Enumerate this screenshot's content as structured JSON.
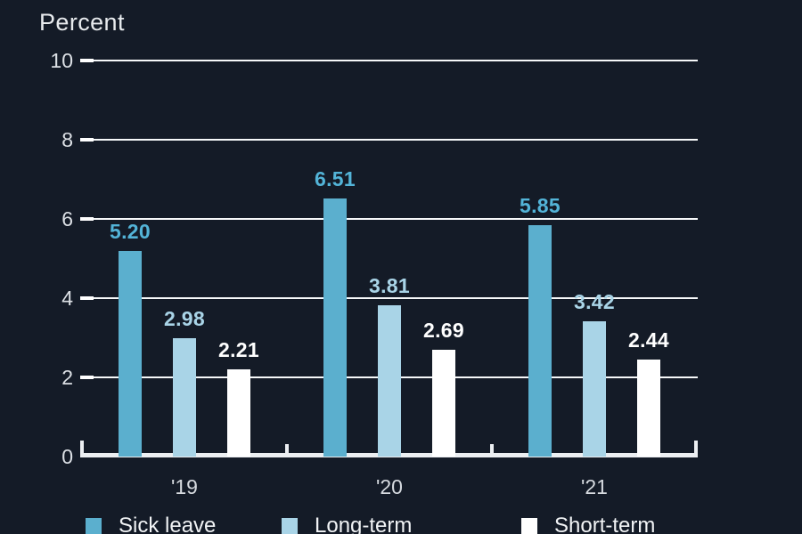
{
  "title": "Percent",
  "colors": {
    "background": "#141B27",
    "grid": "#F6F8F9",
    "axis_text": "#DCE0E5",
    "title_text": "#E7EAED",
    "legend_text": "#F1F3F5"
  },
  "chart_data": {
    "type": "bar",
    "title": "Percent",
    "categories": [
      "'19",
      "'20",
      "'21"
    ],
    "series": [
      {
        "name": "Sick leave",
        "color": "#5BAFCE",
        "label_color": "#53B4D8",
        "values": [
          5.2,
          6.51,
          5.85
        ],
        "labels": [
          "5.20",
          "6.51",
          "5.85"
        ]
      },
      {
        "name": "Long-term",
        "color": "#A9D4E7",
        "label_color": "#A9D4E7",
        "values": [
          2.98,
          3.81,
          3.42
        ],
        "labels": [
          "2.98",
          "3.81",
          "3.42"
        ]
      },
      {
        "name": "Short-term",
        "color": "#FFFFFF",
        "label_color": "#FFFFFF",
        "values": [
          2.21,
          2.69,
          2.44
        ],
        "labels": [
          "2.21",
          "2.69",
          "2.44"
        ]
      }
    ],
    "xlabel": "",
    "ylabel": "Percent",
    "ylim": [
      0,
      10
    ],
    "yticks": [
      0,
      2,
      4,
      6,
      8,
      10
    ],
    "grid": true,
    "value_labels_shown": true,
    "legend_position": "bottom"
  }
}
